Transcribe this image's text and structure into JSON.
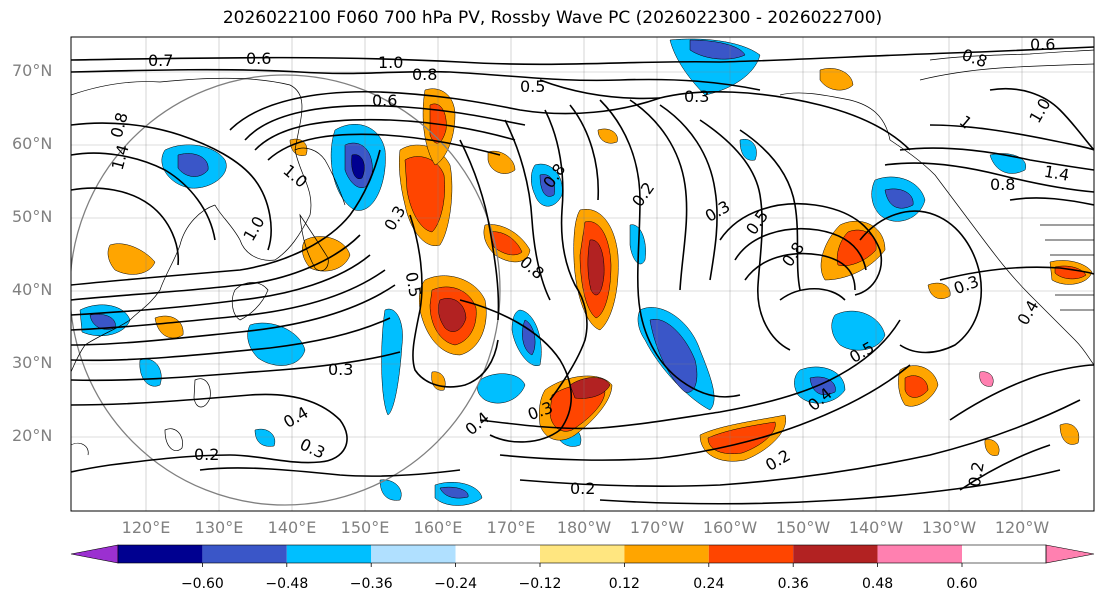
{
  "title": "2026022100 F060 700 hPa PV, Rossby Wave PC (2026022300 - 2026022700)",
  "lat_labels": [
    "70°N",
    "60°N",
    "50°N",
    "40°N",
    "30°N",
    "20°N"
  ],
  "lon_labels": [
    "120°E",
    "130°E",
    "140°E",
    "150°E",
    "160°E",
    "170°E",
    "180°W",
    "170°W",
    "160°W",
    "150°W",
    "140°W",
    "130°W",
    "120°W"
  ],
  "colorbar": {
    "tick_labels": [
      "−0.60",
      "−0.48",
      "−0.36",
      "−0.24",
      "−0.12",
      "0.12",
      "0.24",
      "0.36",
      "0.48",
      "0.60"
    ],
    "colors": [
      "#9b30d0",
      "#000090",
      "#3a56c8",
      "#00bfff",
      "#b0e0ff",
      "#ffffff",
      "#ffe680",
      "#ffa500",
      "#ff4500",
      "#b22222",
      "#ff80b0"
    ]
  },
  "contour_labels": [
    "0.7",
    "0.6",
    "1.0",
    "0.8",
    "0.6",
    "0.5",
    "0.3",
    "1.4",
    "0.8",
    "1.0",
    "0.5",
    "0.3",
    "0.8",
    "0.2",
    "0.5",
    "0.8",
    "0.3",
    "0.8",
    "0.5",
    "0.4",
    "0.3",
    "0.2",
    "0.4",
    "0.3",
    "0.2",
    "0.3",
    "0.2",
    "0.4",
    "1.4",
    "0.8",
    "1.0",
    "0.6",
    "0.8",
    "0.3",
    "0.4",
    "0.2",
    "1.0",
    "1"
  ]
}
